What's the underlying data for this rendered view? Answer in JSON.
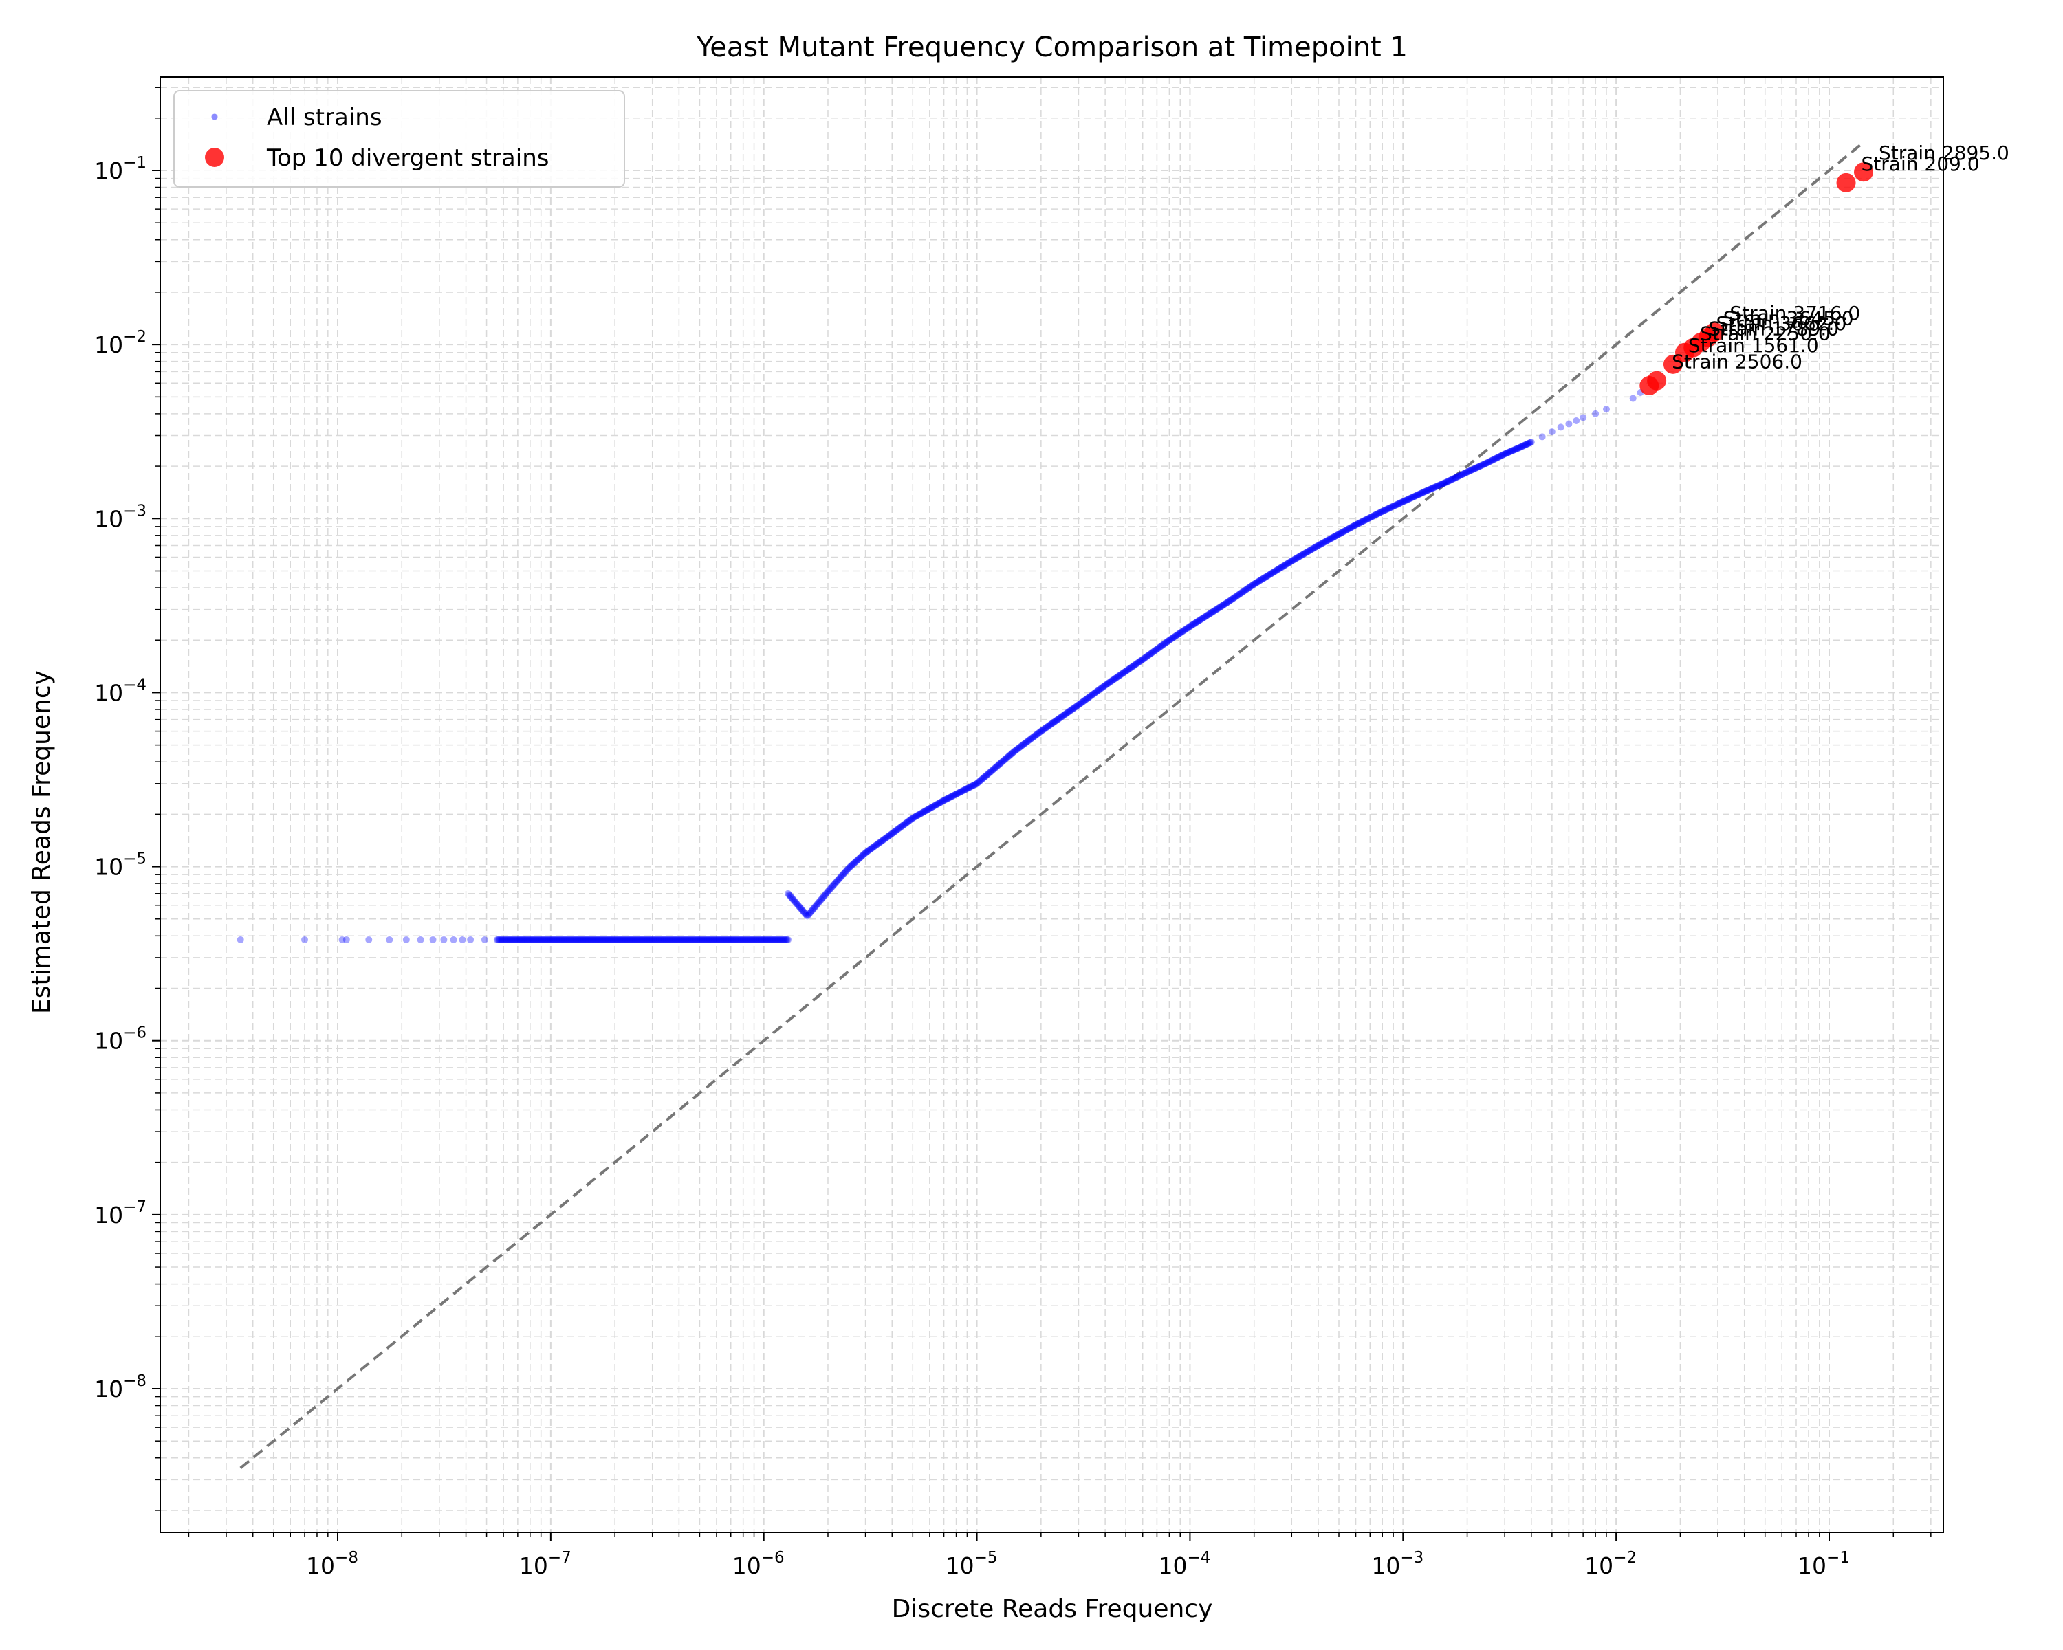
{
  "chart_data": {
    "type": "scatter",
    "title": "Yeast Mutant Frequency Comparison at Timepoint 1",
    "xlabel": "Discrete Reads Frequency",
    "ylabel": "Estimated Reads Frequency",
    "xscale": "log",
    "yscale": "log",
    "xlim": [
      1.5e-09,
      0.33
    ],
    "ylim": [
      1.5e-09,
      0.33
    ],
    "x_tick_exponents": [
      -8,
      -7,
      -6,
      -5,
      -4,
      -3,
      -2,
      -1
    ],
    "y_tick_exponents": [
      -8,
      -7,
      -6,
      -5,
      -4,
      -3,
      -2,
      -1
    ],
    "grid": true,
    "legend_position": "upper-left",
    "reference_line": {
      "style": "dashed",
      "color": "#777777",
      "x_range": [
        3.5e-09,
        0.145
      ],
      "slope": 1
    },
    "series": [
      {
        "name": "All strains",
        "color": "#0000ff",
        "marker": "small-dot",
        "points": [
          [
            3.5e-09,
            3.8e-06
          ],
          [
            7e-09,
            3.8e-06
          ],
          [
            1.05e-08,
            3.8e-06
          ],
          [
            1.1e-08,
            3.8e-06
          ],
          [
            1.4e-08,
            3.8e-06
          ],
          [
            1.75e-08,
            3.8e-06
          ],
          [
            2.1e-08,
            3.8e-06
          ],
          [
            2.45e-08,
            3.8e-06
          ],
          [
            2.8e-08,
            3.8e-06
          ],
          [
            3.15e-08,
            3.8e-06
          ],
          [
            3.5e-08,
            3.8e-06
          ],
          [
            3.85e-08,
            3.8e-06
          ],
          [
            4.2e-08,
            3.8e-06
          ],
          [
            4.9e-08,
            3.8e-06
          ],
          [
            5.6e-08,
            3.8e-06
          ],
          [
            6.3e-08,
            3.8e-06
          ],
          [
            7e-08,
            3.8e-06
          ],
          [
            8e-08,
            3.8e-06
          ],
          [
            1e-07,
            3.8e-06
          ],
          [
            1.3e-07,
            3.8e-06
          ],
          [
            1.7e-07,
            3.8e-06
          ],
          [
            2.2e-07,
            3.8e-06
          ],
          [
            3e-07,
            3.8e-06
          ],
          [
            4e-07,
            3.8e-06
          ],
          [
            5.5e-07,
            3.8e-06
          ],
          [
            7.5e-07,
            3.8e-06
          ],
          [
            1e-06,
            3.8e-06
          ],
          [
            1.3e-06,
            3.8e-06
          ],
          [
            1.3e-06,
            7e-06
          ],
          [
            1.6e-06,
            5.2e-06
          ],
          [
            2e-06,
            7.2e-06
          ],
          [
            2.5e-06,
            9.8e-06
          ],
          [
            3e-06,
            1.2e-05
          ],
          [
            4e-06,
            1.55e-05
          ],
          [
            5e-06,
            1.9e-05
          ],
          [
            7e-06,
            2.4e-05
          ],
          [
            1e-05,
            3e-05
          ],
          [
            1.5e-05,
            4.6e-05
          ],
          [
            2e-05,
            6e-05
          ],
          [
            3e-05,
            8.5e-05
          ],
          [
            4e-05,
            0.00011
          ],
          [
            6e-05,
            0.000155
          ],
          [
            8e-05,
            0.0002
          ],
          [
            0.0001,
            0.00024
          ],
          [
            0.00015,
            0.00033
          ],
          [
            0.0002,
            0.00042
          ],
          [
            0.0003,
            0.00057
          ],
          [
            0.0004,
            0.0007
          ],
          [
            0.0006,
            0.00092
          ],
          [
            0.0008,
            0.0011
          ],
          [
            0.001,
            0.00125
          ],
          [
            0.0013,
            0.00145
          ],
          [
            0.0016,
            0.00162
          ],
          [
            0.002,
            0.00185
          ],
          [
            0.0025,
            0.0021
          ],
          [
            0.003,
            0.00235
          ],
          [
            0.0035,
            0.00255
          ],
          [
            0.004,
            0.00275
          ],
          [
            0.0045,
            0.00295
          ],
          [
            0.005,
            0.00315
          ],
          [
            0.0055,
            0.00335
          ],
          [
            0.006,
            0.0035
          ],
          [
            0.0065,
            0.00365
          ],
          [
            0.007,
            0.0038
          ],
          [
            0.008,
            0.004
          ],
          [
            0.009,
            0.00425
          ],
          [
            0.012,
            0.0049
          ],
          [
            0.013,
            0.0053
          ]
        ]
      },
      {
        "name": "Top 10 divergent strains",
        "color": "#ff0000",
        "marker": "large-dot",
        "points": [
          {
            "x": 0.145,
            "y": 0.098,
            "label": "Strain 2895.0"
          },
          {
            "x": 0.12,
            "y": 0.085,
            "label": "Strain 209.0"
          },
          {
            "x": 0.029,
            "y": 0.0118,
            "label": "Strain 3716.0"
          },
          {
            "x": 0.027,
            "y": 0.011,
            "label": "Strain 3645.0"
          },
          {
            "x": 0.025,
            "y": 0.0103,
            "label": "Strain 3662.0"
          },
          {
            "x": 0.023,
            "y": 0.0096,
            "label": "Strain 1789.0"
          },
          {
            "x": 0.021,
            "y": 0.009,
            "label": "Strain 2250.0"
          },
          {
            "x": 0.0185,
            "y": 0.0077,
            "label": "Strain 1561.0"
          },
          {
            "x": 0.0155,
            "y": 0.0062,
            "label": "Strain 2506.0"
          },
          {
            "x": 0.0143,
            "y": 0.0058,
            "label": ""
          }
        ]
      }
    ]
  }
}
